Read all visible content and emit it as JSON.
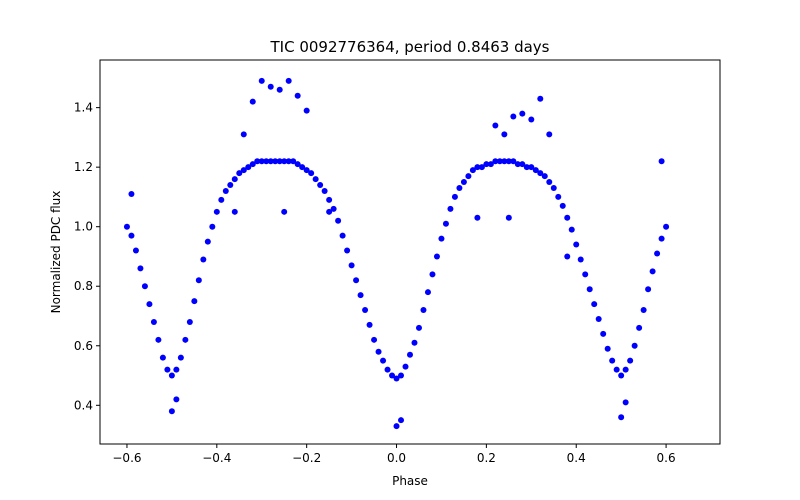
{
  "chart_data": {
    "type": "scatter",
    "title": "TIC 0092776364, period 0.8463 days",
    "xlabel": "Phase",
    "ylabel": "Normalized PDC flux",
    "xlim": [
      -0.66,
      0.72
    ],
    "ylim": [
      0.27,
      1.56
    ],
    "xticks": [
      -0.6,
      -0.4,
      -0.2,
      0.0,
      0.2,
      0.4,
      0.6
    ],
    "xtick_labels": [
      "−0.6",
      "−0.4",
      "−0.2",
      "0.0",
      "0.2",
      "0.4",
      "0.6"
    ],
    "yticks": [
      0.4,
      0.6,
      0.8,
      1.0,
      1.2,
      1.4
    ],
    "ytick_labels": [
      "0.4",
      "0.6",
      "0.8",
      "1.0",
      "1.2",
      "1.4"
    ],
    "grid": false,
    "marker_color": "#0000ff",
    "series": [
      {
        "x": [
          -0.6,
          -0.58,
          -0.56,
          -0.54,
          -0.52,
          -0.5,
          -0.48,
          -0.46,
          -0.44,
          -0.42,
          -0.4,
          -0.38,
          -0.36,
          -0.34,
          -0.32,
          -0.3,
          -0.28,
          -0.26,
          -0.24,
          -0.22,
          -0.2,
          -0.18,
          -0.16,
          -0.14,
          -0.12,
          -0.1,
          -0.08,
          -0.06,
          -0.04,
          -0.02,
          0.0,
          0.02,
          0.04,
          0.06,
          0.08,
          0.1,
          0.12,
          0.14,
          0.16,
          0.18,
          0.2,
          0.22,
          0.24,
          0.26,
          0.28,
          0.3,
          0.32,
          0.34,
          0.36,
          0.38,
          0.4,
          0.42,
          0.44,
          0.46,
          0.48,
          0.5,
          0.52,
          0.54,
          0.56,
          0.58,
          0.6,
          -0.59,
          -0.57,
          -0.55,
          -0.53,
          -0.51,
          -0.49,
          -0.47,
          -0.45,
          -0.43,
          -0.41,
          -0.39,
          -0.37,
          -0.35,
          -0.33,
          -0.31,
          -0.29,
          -0.27,
          -0.25,
          -0.23,
          -0.21,
          -0.19,
          -0.17,
          -0.15,
          -0.13,
          -0.11,
          -0.09,
          -0.07,
          -0.05,
          -0.03,
          -0.01,
          0.01,
          0.03,
          0.05,
          0.07,
          0.09,
          0.11,
          0.13,
          0.15,
          0.17,
          0.19,
          0.21,
          0.23,
          0.25,
          0.27,
          0.29,
          0.31,
          0.33,
          0.35,
          0.37,
          0.39,
          0.41,
          0.43,
          0.45,
          0.47,
          0.49,
          0.51,
          0.53,
          0.55,
          0.57,
          0.59,
          -0.3,
          -0.28,
          -0.26,
          -0.24,
          -0.22,
          -0.2,
          -0.32,
          -0.34,
          0.22,
          0.24,
          0.26,
          0.28,
          0.3,
          0.32,
          0.34,
          -0.36,
          -0.25,
          -0.15,
          0.18,
          0.25,
          0.38,
          -0.5,
          0.0,
          0.5,
          -0.49,
          0.01,
          0.51,
          -0.59,
          0.59
        ],
        "y": [
          1.0,
          0.92,
          0.8,
          0.68,
          0.56,
          0.5,
          0.56,
          0.68,
          0.82,
          0.95,
          1.05,
          1.12,
          1.16,
          1.19,
          1.21,
          1.22,
          1.22,
          1.22,
          1.22,
          1.21,
          1.19,
          1.16,
          1.12,
          1.06,
          0.97,
          0.87,
          0.77,
          0.67,
          0.58,
          0.52,
          0.49,
          0.53,
          0.61,
          0.72,
          0.84,
          0.96,
          1.06,
          1.13,
          1.17,
          1.2,
          1.21,
          1.22,
          1.22,
          1.22,
          1.21,
          1.2,
          1.18,
          1.15,
          1.1,
          1.03,
          0.94,
          0.84,
          0.74,
          0.64,
          0.55,
          0.5,
          0.55,
          0.66,
          0.79,
          0.91,
          1.0,
          0.97,
          0.86,
          0.74,
          0.62,
          0.52,
          0.52,
          0.62,
          0.75,
          0.89,
          1.0,
          1.09,
          1.14,
          1.18,
          1.2,
          1.22,
          1.22,
          1.22,
          1.22,
          1.22,
          1.2,
          1.18,
          1.14,
          1.09,
          1.02,
          0.92,
          0.82,
          0.72,
          0.62,
          0.55,
          0.5,
          0.5,
          0.57,
          0.66,
          0.78,
          0.9,
          1.01,
          1.1,
          1.15,
          1.19,
          1.2,
          1.21,
          1.22,
          1.22,
          1.21,
          1.2,
          1.19,
          1.17,
          1.13,
          1.07,
          0.99,
          0.89,
          0.79,
          0.69,
          0.59,
          0.52,
          0.52,
          0.6,
          0.72,
          0.85,
          0.96,
          1.49,
          1.47,
          1.46,
          1.49,
          1.44,
          1.39,
          1.42,
          1.31,
          1.34,
          1.31,
          1.37,
          1.38,
          1.36,
          1.43,
          1.31,
          1.05,
          1.05,
          1.05,
          1.03,
          1.03,
          0.9,
          0.38,
          0.33,
          0.36,
          0.42,
          0.35,
          0.41,
          1.11,
          1.22
        ]
      }
    ]
  }
}
